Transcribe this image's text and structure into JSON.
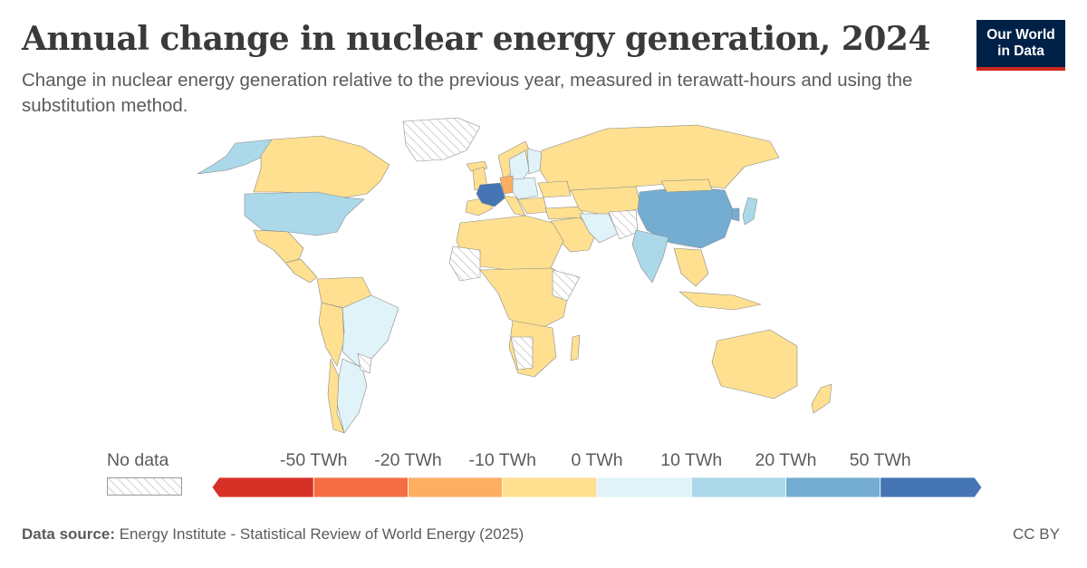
{
  "header": {
    "title": "Annual change in nuclear energy generation, 2024",
    "subtitle": "Change in nuclear energy generation relative to the previous year, measured in terawatt-hours and using the substitution method."
  },
  "logo": {
    "line1": "Our World",
    "line2": "in Data"
  },
  "legend": {
    "no_data_label": "No data",
    "ticks": [
      "-50 TWh",
      "-20 TWh",
      "-10 TWh",
      "0 TWh",
      "10 TWh",
      "20 TWh",
      "50 TWh"
    ],
    "bins": [
      {
        "range": "< -50 TWh",
        "color": "#d73027"
      },
      {
        "range": "-50 to -20 TWh",
        "color": "#f46d43"
      },
      {
        "range": "-20 to -10 TWh",
        "color": "#fdae61"
      },
      {
        "range": "-10 to 0 TWh",
        "color": "#fee090"
      },
      {
        "range": "0 to 10 TWh",
        "color": "#e0f3f8"
      },
      {
        "range": "10 to 20 TWh",
        "color": "#abd9e9"
      },
      {
        "range": "20 to 50 TWh",
        "color": "#74add1"
      },
      {
        "range": "> 50 TWh",
        "color": "#4575b4"
      }
    ]
  },
  "footer": {
    "source_label": "Data source:",
    "source_text": " Energy Institute - Statistical Review of World Energy (2025)",
    "license": "CC BY"
  },
  "map_data": {
    "highlighted_regions": [
      {
        "region": "France",
        "bin": "> 50 TWh"
      },
      {
        "region": "China",
        "bin": "20 to 50 TWh"
      },
      {
        "region": "United States",
        "bin": "10 to 20 TWh"
      },
      {
        "region": "India",
        "bin": "10 to 20 TWh"
      },
      {
        "region": "Japan",
        "bin": "10 to 20 TWh"
      },
      {
        "region": "Germany",
        "bin": "-20 to -10 TWh"
      },
      {
        "region": "Brazil",
        "bin": "0 to 10 TWh"
      },
      {
        "region": "Argentina",
        "bin": "0 to 10 TWh"
      },
      {
        "region": "Iran",
        "bin": "0 to 10 TWh"
      },
      {
        "region": "Sweden",
        "bin": "0 to 10 TWh"
      }
    ]
  }
}
